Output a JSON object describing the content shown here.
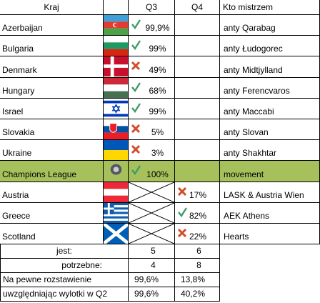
{
  "header": [
    "Kraj",
    "Q3",
    "Q4",
    "Kto mistrzem"
  ],
  "rows": [
    {
      "country": "Azerbaijan",
      "q3": "99,9%",
      "champion": "anty Qarabag"
    },
    {
      "country": "Bulgaria",
      "q3": "99%",
      "champion": "anty Łudogorec"
    },
    {
      "country": "Denmark",
      "q3": "49%",
      "champion": "anty Midtjylland"
    },
    {
      "country": "Hungary",
      "q3": "68%",
      "champion": "anty Ferencvaros"
    },
    {
      "country": "Israel",
      "q3": "99%",
      "champion": "anty Maccabi"
    },
    {
      "country": "Slovakia",
      "q3": "5%",
      "champion": "anty Slovan"
    },
    {
      "country": "Ukraine",
      "q3": "3%",
      "champion": "anty Shakhtar"
    },
    {
      "country": "Champions League",
      "q3": "100%",
      "champion": "movement"
    },
    {
      "country": "Austria",
      "q4": "17%",
      "champion": "LASK & Austria Wien"
    },
    {
      "country": "Greece",
      "q4": "82%",
      "champion": "AEK Athens"
    },
    {
      "country": "Scotland",
      "q4": "22%",
      "champion": "Hearts"
    }
  ],
  "summary": [
    {
      "label": "jest:",
      "q3": "5",
      "q4": "6"
    },
    {
      "label": "potrzebne:",
      "q3": "4",
      "q4": "8"
    },
    {
      "label": "Na pewne rozstawienie",
      "q3": "99,6%",
      "q4": "13,8%"
    },
    {
      "label": "uwzględniając wylotki w Q2",
      "q3": "99,6%",
      "q4": "40,2%"
    }
  ]
}
